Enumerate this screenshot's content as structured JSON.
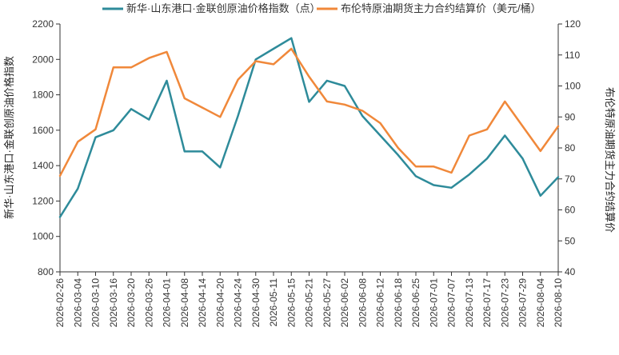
{
  "chart_data": {
    "type": "line",
    "title": "",
    "legend": {
      "placement": "top-center"
    },
    "grid": false,
    "x": [
      "2026-02-26",
      "2026-03-04",
      "2026-03-10",
      "2026-03-16",
      "2026-03-20",
      "2026-03-26",
      "2026-04-01",
      "2026-04-08",
      "2026-04-14",
      "2026-04-20",
      "2026-04-24",
      "2026-04-30",
      "2026-05-11",
      "2026-05-15",
      "2026-05-21",
      "2026-05-27",
      "2026-06-02",
      "2026-06-08",
      "2026-06-12",
      "2026-06-18",
      "2026-06-25",
      "2026-07-01",
      "2026-07-07",
      "2026-07-13",
      "2026-07-17",
      "2026-07-23",
      "2026-07-29",
      "2026-08-04",
      "2026-08-10"
    ],
    "xticks": [
      "2026-02-26",
      "2026-03-04",
      "2026-03-10",
      "2026-03-16",
      "2026-03-20",
      "2026-03-26",
      "2026-04-01",
      "2026-04-08",
      "2026-04-14",
      "2026-04-20",
      "2026-04-24",
      "2026-04-30",
      "2026-05-11",
      "2026-05-15",
      "2026-05-21",
      "2026-05-27",
      "2026-06-02",
      "2026-06-08",
      "2026-06-12",
      "2026-06-18",
      "2026-06-25",
      "2026-07-01",
      "2026-07-07",
      "2026-07-13",
      "2026-07-17",
      "2026-07-23",
      "2026-07-29",
      "2026-08-04",
      "2026-08-10"
    ],
    "left_axis": {
      "label": "新华·山东港口·金联创原油价格指数",
      "ylim": [
        800,
        2200
      ],
      "ticks": [
        800,
        1000,
        1200,
        1400,
        1600,
        1800,
        2000,
        2200
      ]
    },
    "right_axis": {
      "label": "布伦特原油期货主力合约结算价",
      "ylim": [
        40,
        120
      ],
      "ticks": [
        40,
        50,
        60,
        70,
        80,
        90,
        100,
        110,
        120
      ]
    },
    "series": [
      {
        "name": "新华·山东港口·金联创原油价格指数（点）",
        "axis": "left",
        "color": "#2e8b9a",
        "values": [
          1110,
          1270,
          1560,
          1600,
          1720,
          1660,
          1880,
          1480,
          1480,
          1390,
          1680,
          2000,
          2060,
          2120,
          1760,
          1880,
          1850,
          1680,
          1570,
          1460,
          1340,
          1290,
          1275,
          1350,
          1440,
          1570,
          1440,
          1230,
          1335
        ]
      },
      {
        "name": "布伦特原油期货主力合约结算价（美元/桶）",
        "axis": "right",
        "color": "#f0883a",
        "values": [
          71,
          82,
          86,
          106,
          106,
          109,
          111,
          96,
          93,
          90,
          102,
          108,
          107,
          112,
          103,
          95,
          94,
          92,
          88,
          80,
          74,
          74,
          72,
          84,
          86,
          95,
          87,
          79,
          87
        ]
      }
    ]
  }
}
